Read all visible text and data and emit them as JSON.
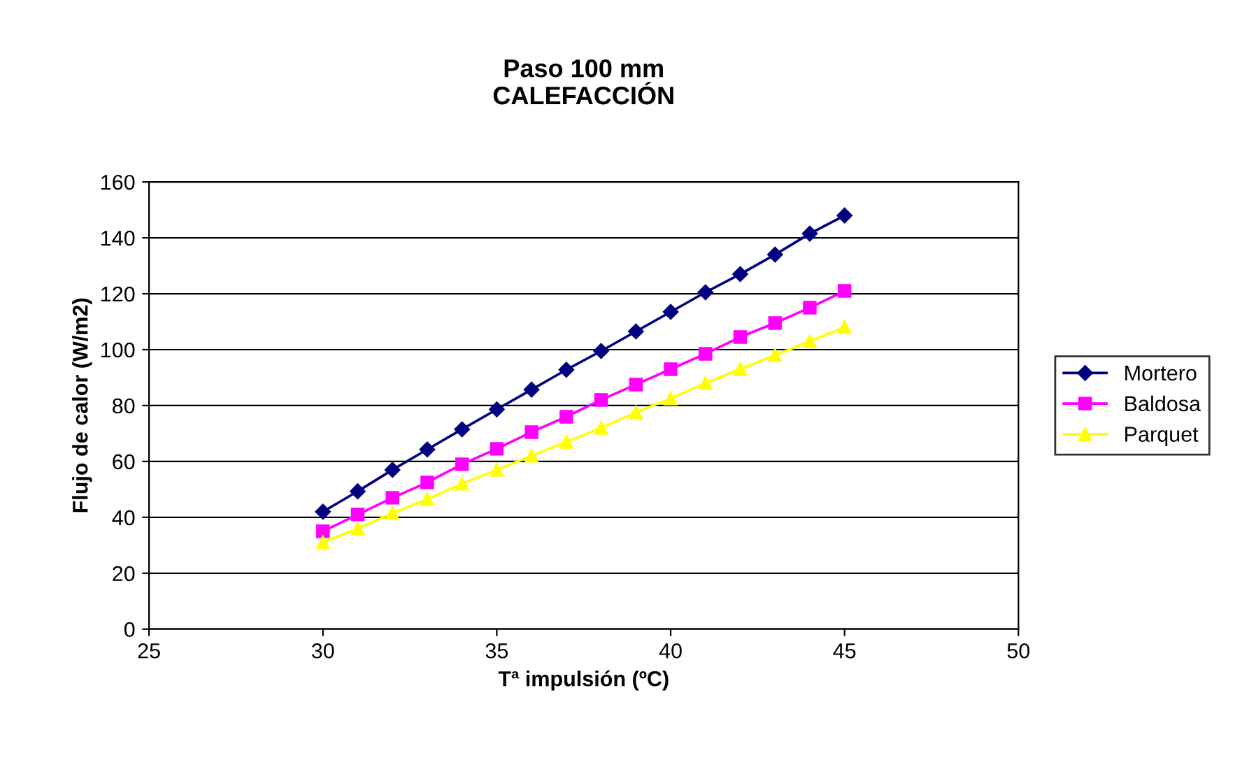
{
  "chart_data": {
    "type": "line",
    "title": "Paso 100 mm\nCALEFACCIÓN",
    "xlabel": "Tª impulsión (ºC)",
    "ylabel": "Flujo de calor (W/m2)",
    "x": [
      30,
      31,
      32,
      33,
      34,
      35,
      36,
      37,
      38,
      39,
      40,
      41,
      42,
      43,
      44,
      45
    ],
    "series": [
      {
        "name": "Mortero",
        "color": "#000080",
        "marker": "diamond",
        "values": [
          42,
          49.3,
          57,
          64.3,
          71.5,
          78.6,
          85.7,
          92.8,
          99.5,
          106.5,
          113.5,
          120.5,
          127,
          134,
          141.5,
          148
        ]
      },
      {
        "name": "Baldosa",
        "color": "#ff00ff",
        "marker": "square",
        "values": [
          35,
          41,
          47,
          52.5,
          59,
          64.5,
          70.5,
          76,
          82,
          87.5,
          93,
          98.5,
          104.5,
          109.5,
          115,
          121
        ]
      },
      {
        "name": "Parquet",
        "color": "#ffff00",
        "marker": "triangle",
        "values": [
          31,
          36,
          41.5,
          46.5,
          52,
          57,
          62,
          67,
          72,
          77.5,
          82.5,
          88,
          93,
          98,
          103,
          108
        ]
      }
    ],
    "xlim": [
      25,
      50
    ],
    "xticks": [
      25,
      30,
      35,
      40,
      45,
      50
    ],
    "ylim": [
      0,
      160
    ],
    "yticks": [
      0,
      20,
      40,
      60,
      80,
      100,
      120,
      140,
      160
    ],
    "grid": "y",
    "legend": "right",
    "line_style": "solid"
  }
}
